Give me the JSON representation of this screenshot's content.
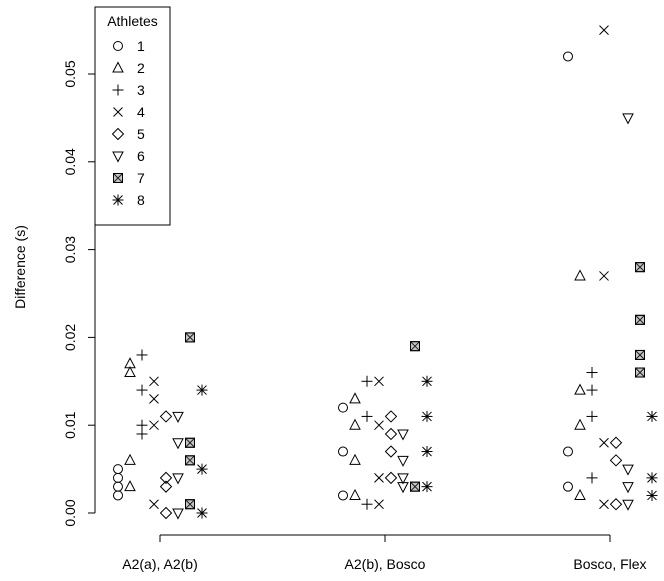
{
  "chart_data": {
    "type": "scatter",
    "title": "",
    "xlabel": "",
    "ylabel": "Difference (s)",
    "ylim": [
      -0.001,
      0.056
    ],
    "yticks": [
      0.0,
      0.01,
      0.02,
      0.03,
      0.04,
      0.05
    ],
    "ytick_labels": [
      "0.00",
      "0.01",
      "0.02",
      "0.03",
      "0.04",
      "0.05"
    ],
    "categories": [
      "A2(a), A2(b)",
      "A2(b), Bosco",
      "Bosco, Flex"
    ],
    "grid": false,
    "legend": {
      "title": "Athletes",
      "position": "top-left"
    },
    "series": [
      {
        "name": "1",
        "symbol": "circle",
        "points": [
          [
            0,
            0.002
          ],
          [
            0,
            0.003
          ],
          [
            0,
            0.004
          ],
          [
            0,
            0.005
          ],
          [
            1,
            0.002
          ],
          [
            1,
            0.007
          ],
          [
            1,
            0.012
          ],
          [
            2,
            0.003
          ],
          [
            2,
            0.007
          ],
          [
            2,
            0.052
          ]
        ]
      },
      {
        "name": "2",
        "symbol": "triangle-up",
        "points": [
          [
            0,
            0.003
          ],
          [
            0,
            0.006
          ],
          [
            0,
            0.016
          ],
          [
            0,
            0.017
          ],
          [
            1,
            0.002
          ],
          [
            1,
            0.006
          ],
          [
            1,
            0.01
          ],
          [
            1,
            0.013
          ],
          [
            2,
            0.002
          ],
          [
            2,
            0.01
          ],
          [
            2,
            0.014
          ],
          [
            2,
            0.027
          ]
        ]
      },
      {
        "name": "3",
        "symbol": "plus",
        "points": [
          [
            0,
            0.009
          ],
          [
            0,
            0.01
          ],
          [
            0,
            0.014
          ],
          [
            0,
            0.018
          ],
          [
            1,
            0.001
          ],
          [
            1,
            0.011
          ],
          [
            1,
            0.015
          ],
          [
            2,
            0.004
          ],
          [
            2,
            0.011
          ],
          [
            2,
            0.014
          ],
          [
            2,
            0.016
          ]
        ]
      },
      {
        "name": "4",
        "symbol": "cross",
        "points": [
          [
            0,
            0.001
          ],
          [
            0,
            0.01
          ],
          [
            0,
            0.013
          ],
          [
            0,
            0.015
          ],
          [
            1,
            0.001
          ],
          [
            1,
            0.004
          ],
          [
            1,
            0.01
          ],
          [
            1,
            0.015
          ],
          [
            2,
            0.001
          ],
          [
            2,
            0.008
          ],
          [
            2,
            0.027
          ],
          [
            2,
            0.055
          ]
        ]
      },
      {
        "name": "5",
        "symbol": "diamond",
        "points": [
          [
            0,
            0.0
          ],
          [
            0,
            0.003
          ],
          [
            0,
            0.004
          ],
          [
            0,
            0.011
          ],
          [
            1,
            0.004
          ],
          [
            1,
            0.007
          ],
          [
            1,
            0.009
          ],
          [
            1,
            0.011
          ],
          [
            2,
            0.001
          ],
          [
            2,
            0.006
          ],
          [
            2,
            0.008
          ]
        ]
      },
      {
        "name": "6",
        "symbol": "triangle-down",
        "points": [
          [
            0,
            0.0
          ],
          [
            0,
            0.004
          ],
          [
            0,
            0.008
          ],
          [
            0,
            0.011
          ],
          [
            1,
            0.003
          ],
          [
            1,
            0.004
          ],
          [
            1,
            0.006
          ],
          [
            1,
            0.009
          ],
          [
            2,
            0.001
          ],
          [
            2,
            0.003
          ],
          [
            2,
            0.005
          ],
          [
            2,
            0.045
          ]
        ]
      },
      {
        "name": "7",
        "symbol": "boxed-x",
        "points": [
          [
            0,
            0.001
          ],
          [
            0,
            0.006
          ],
          [
            0,
            0.008
          ],
          [
            0,
            0.02
          ],
          [
            1,
            0.003
          ],
          [
            1,
            0.019
          ],
          [
            2,
            0.016
          ],
          [
            2,
            0.018
          ],
          [
            2,
            0.022
          ],
          [
            2,
            0.028
          ]
        ]
      },
      {
        "name": "8",
        "symbol": "asterisk",
        "points": [
          [
            0,
            0.0
          ],
          [
            0,
            0.005
          ],
          [
            0,
            0.014
          ],
          [
            1,
            0.003
          ],
          [
            1,
            0.007
          ],
          [
            1,
            0.011
          ],
          [
            1,
            0.015
          ],
          [
            2,
            0.002
          ],
          [
            2,
            0.004
          ],
          [
            2,
            0.011
          ]
        ]
      }
    ]
  }
}
